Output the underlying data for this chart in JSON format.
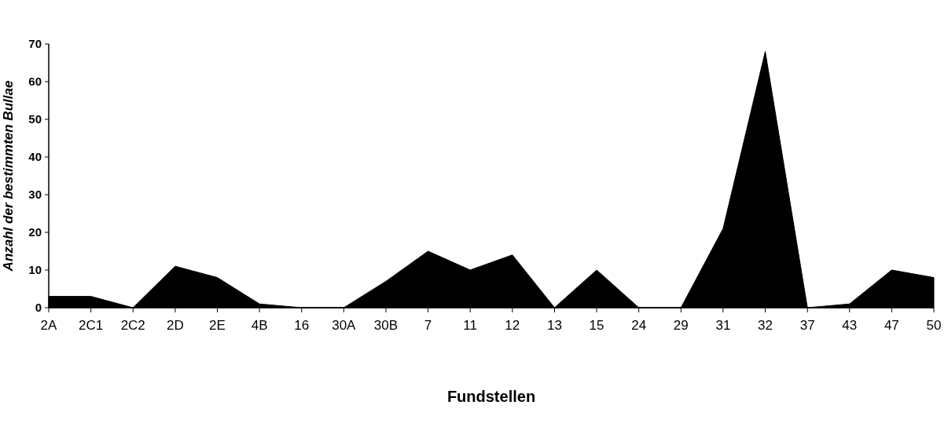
{
  "chart_data": {
    "type": "area",
    "xlabel": "Fundstellen",
    "ylabel": "Anzahl der bestimmten Bullae",
    "categories": [
      "2A",
      "2C1",
      "2C2",
      "2D",
      "2E",
      "4B",
      "16",
      "30A",
      "30B",
      "7",
      "11",
      "12",
      "13",
      "15",
      "24",
      "29",
      "31",
      "32",
      "37",
      "43",
      "47",
      "50"
    ],
    "values": [
      3,
      3,
      0,
      11,
      8,
      1,
      0,
      0,
      7,
      15,
      10,
      14,
      0,
      10,
      0,
      0,
      21,
      68,
      0,
      1,
      10,
      8
    ],
    "color": "#000000",
    "ylim": [
      0,
      70
    ],
    "yticks": [
      0,
      10,
      20,
      30,
      40,
      50,
      60,
      70
    ],
    "grid": false
  }
}
